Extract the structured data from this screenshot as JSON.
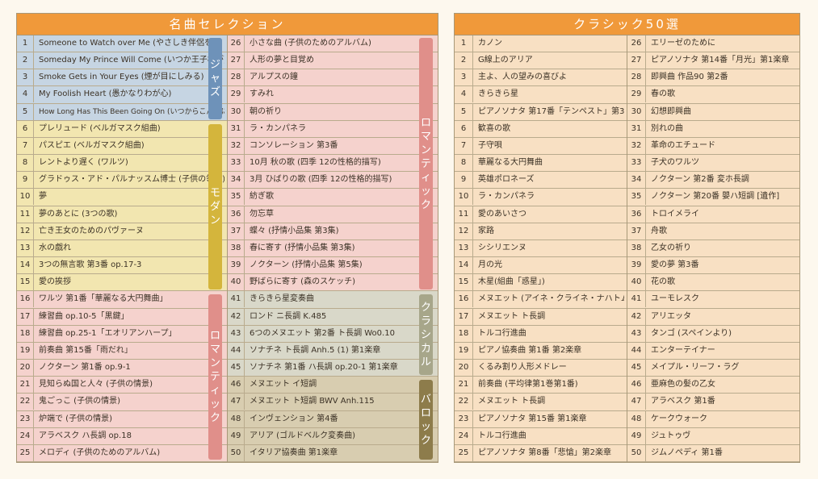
{
  "left_panel": {
    "title": "名曲セレクション",
    "col1": [
      {
        "num": "1",
        "title": "Someone to Watch over Me (やさしき伴侶を)",
        "group": "jazz"
      },
      {
        "num": "2",
        "title": "Someday My Prince Will Come (いつか王子様が)",
        "group": "jazz"
      },
      {
        "num": "3",
        "title": "Smoke Gets in Your Eyes (煙が目にしみる)",
        "group": "jazz"
      },
      {
        "num": "4",
        "title": "My Foolish Heart (愚かなりわが心)",
        "group": "jazz"
      },
      {
        "num": "5",
        "title": "How Long Has This Been Going On (いつからこんなに)",
        "group": "jazz"
      },
      {
        "num": "6",
        "title": "プレリュード (ベルガマスク組曲)",
        "group": "modern"
      },
      {
        "num": "7",
        "title": "パスピエ (ベルガマスク組曲)",
        "group": "modern"
      },
      {
        "num": "8",
        "title": "レントより遅く (ワルツ)",
        "group": "modern"
      },
      {
        "num": "9",
        "title": "グラドゥス・アド・パルナッスム博士 (子供の領分)",
        "group": "modern"
      },
      {
        "num": "10",
        "title": "夢",
        "group": "modern"
      },
      {
        "num": "11",
        "title": "夢のあとに (3つの歌)",
        "group": "modern"
      },
      {
        "num": "12",
        "title": "亡き王女のためのパヴァーヌ",
        "group": "modern"
      },
      {
        "num": "13",
        "title": "水の戯れ",
        "group": "modern"
      },
      {
        "num": "14",
        "title": "3つの無言歌 第3番 op.17-3",
        "group": "modern"
      },
      {
        "num": "15",
        "title": "愛の挨拶",
        "group": "modern"
      },
      {
        "num": "16",
        "title": "ワルツ 第1番「華麗なる大円舞曲」",
        "group": "romantic"
      },
      {
        "num": "17",
        "title": "練習曲 op.10-5「黒鍵」",
        "group": "romantic"
      },
      {
        "num": "18",
        "title": "練習曲 op.25-1「エオリアンハープ」",
        "group": "romantic"
      },
      {
        "num": "19",
        "title": "前奏曲 第15番「雨だれ」",
        "group": "romantic"
      },
      {
        "num": "20",
        "title": "ノクターン 第1番 op.9-1",
        "group": "romantic"
      },
      {
        "num": "21",
        "title": "見知らぬ国と人々 (子供の情景)",
        "group": "romantic"
      },
      {
        "num": "22",
        "title": "鬼ごっこ (子供の情景)",
        "group": "romantic"
      },
      {
        "num": "23",
        "title": "炉端で (子供の情景)",
        "group": "romantic"
      },
      {
        "num": "24",
        "title": "アラベスク ハ長調 op.18",
        "group": "romantic"
      },
      {
        "num": "25",
        "title": "メロディ (子供のためのアルバム)",
        "group": "romantic"
      }
    ],
    "col2": [
      {
        "num": "26",
        "title": "小さな曲 (子供のためのアルバム)",
        "group": "romantic"
      },
      {
        "num": "27",
        "title": "人形の夢と目覚め",
        "group": "romantic"
      },
      {
        "num": "28",
        "title": "アルプスの鐘",
        "group": "romantic"
      },
      {
        "num": "29",
        "title": "すみれ",
        "group": "romantic"
      },
      {
        "num": "30",
        "title": "朝の祈り",
        "group": "romantic"
      },
      {
        "num": "31",
        "title": "ラ・カンパネラ",
        "group": "romantic"
      },
      {
        "num": "32",
        "title": "コンソレーション 第3番",
        "group": "romantic"
      },
      {
        "num": "33",
        "title": "10月 秋の歌 (四季 12の性格的描写)",
        "group": "romantic"
      },
      {
        "num": "34",
        "title": "3月 ひばりの歌 (四季 12の性格的描写)",
        "group": "romantic"
      },
      {
        "num": "35",
        "title": "紡ぎ歌",
        "group": "romantic"
      },
      {
        "num": "36",
        "title": "勿忘草",
        "group": "romantic"
      },
      {
        "num": "37",
        "title": "蝶々 (抒情小品集 第3集)",
        "group": "romantic"
      },
      {
        "num": "38",
        "title": "春に寄す (抒情小品集 第3集)",
        "group": "romantic"
      },
      {
        "num": "39",
        "title": "ノクターン (抒情小品集 第5集)",
        "group": "romantic"
      },
      {
        "num": "40",
        "title": "野ばらに寄す (森のスケッチ)",
        "group": "romantic"
      },
      {
        "num": "41",
        "title": "きらきら星変奏曲",
        "group": "classical"
      },
      {
        "num": "42",
        "title": "ロンド ニ長調 K.485",
        "group": "classical"
      },
      {
        "num": "43",
        "title": "6つのメヌエット 第2番 ト長調 Wo0.10",
        "group": "classical"
      },
      {
        "num": "44",
        "title": "ソナチネ ト長調 Anh.5 (1) 第1楽章",
        "group": "classical"
      },
      {
        "num": "45",
        "title": "ソナチネ 第1番 ハ長調 op.20-1 第1楽章",
        "group": "classical"
      },
      {
        "num": "46",
        "title": "メヌエット イ短調",
        "group": "baroque"
      },
      {
        "num": "47",
        "title": "メヌエット ト短調 BWV Anh.115",
        "group": "baroque"
      },
      {
        "num": "48",
        "title": "インヴェンション 第4番",
        "group": "baroque"
      },
      {
        "num": "49",
        "title": "アリア (ゴルドベルク変奏曲)",
        "group": "baroque"
      },
      {
        "num": "50",
        "title": "イタリア協奏曲 第1楽章",
        "group": "baroque"
      }
    ],
    "group_labels": {
      "jazz": "ジャズ",
      "modern": "モダン",
      "romantic_left": "ロマンティック",
      "romantic_right": "ロマンティック",
      "classical": "クラシカル",
      "baroque": "バロック"
    },
    "colors": {
      "jazz_row": "#c6d5e3",
      "jazz_bar": "#6e92b9",
      "modern_row": "#f2e6b0",
      "modern_bar": "#d4b53c",
      "romantic_row": "#f5d2cd",
      "romantic_bar": "#e08f8a",
      "classical_row": "#d9d8c9",
      "classical_bar": "#a7a68a",
      "baroque_row": "#d8cdb0",
      "baroque_bar": "#8d7c4b"
    }
  },
  "right_panel": {
    "title": "クラシック50選",
    "row_color": "#f8e0c3",
    "col1": [
      {
        "num": "1",
        "title": "カノン"
      },
      {
        "num": "2",
        "title": "G線上のアリア"
      },
      {
        "num": "3",
        "title": "主よ、人の望みの喜びよ"
      },
      {
        "num": "4",
        "title": "きらきら星"
      },
      {
        "num": "5",
        "title": "ピアノソナタ 第17番「テンペスト」第3楽章"
      },
      {
        "num": "6",
        "title": "歓喜の歌"
      },
      {
        "num": "7",
        "title": "子守唄"
      },
      {
        "num": "8",
        "title": "華麗なる大円舞曲"
      },
      {
        "num": "9",
        "title": "英雄ポロネーズ"
      },
      {
        "num": "10",
        "title": "ラ・カンパネラ"
      },
      {
        "num": "11",
        "title": "愛のあいさつ"
      },
      {
        "num": "12",
        "title": "家路"
      },
      {
        "num": "13",
        "title": "シシリエンヌ"
      },
      {
        "num": "14",
        "title": "月の光"
      },
      {
        "num": "15",
        "title": "木星(組曲「惑星」)"
      },
      {
        "num": "16",
        "title": "メヌエット (アイネ・クライネ・ナハトムジーク)"
      },
      {
        "num": "17",
        "title": "メヌエット ト長調"
      },
      {
        "num": "18",
        "title": "トルコ行進曲"
      },
      {
        "num": "19",
        "title": "ピアノ協奏曲 第1番 第2楽章"
      },
      {
        "num": "20",
        "title": "くるみ割り人形メドレー"
      },
      {
        "num": "21",
        "title": "前奏曲 (平均律第1巻第1番)"
      },
      {
        "num": "22",
        "title": "メヌエット ト長調"
      },
      {
        "num": "23",
        "title": "ピアノソナタ 第15番 第1楽章"
      },
      {
        "num": "24",
        "title": "トルコ行進曲"
      },
      {
        "num": "25",
        "title": "ピアノソナタ 第8番「悲愴」第2楽章"
      }
    ],
    "col2": [
      {
        "num": "26",
        "title": "エリーゼのために"
      },
      {
        "num": "27",
        "title": "ピアノソナタ 第14番「月光」第1楽章"
      },
      {
        "num": "28",
        "title": "即興曲 作品90 第2番"
      },
      {
        "num": "29",
        "title": "春の歌"
      },
      {
        "num": "30",
        "title": "幻想即興曲"
      },
      {
        "num": "31",
        "title": "別れの曲"
      },
      {
        "num": "32",
        "title": "革命のエチュード"
      },
      {
        "num": "33",
        "title": "子犬のワルツ"
      },
      {
        "num": "34",
        "title": "ノクターン 第2番 変ホ長調"
      },
      {
        "num": "35",
        "title": "ノクターン 第20番 嬰ハ短調 [遺作]"
      },
      {
        "num": "36",
        "title": "トロイメライ"
      },
      {
        "num": "37",
        "title": "舟歌"
      },
      {
        "num": "38",
        "title": "乙女の祈り"
      },
      {
        "num": "39",
        "title": "愛の夢 第3番"
      },
      {
        "num": "40",
        "title": "花の歌"
      },
      {
        "num": "41",
        "title": "ユーモレスク"
      },
      {
        "num": "42",
        "title": "アリエッタ"
      },
      {
        "num": "43",
        "title": "タンゴ (スペインより)"
      },
      {
        "num": "44",
        "title": "エンターテイナー"
      },
      {
        "num": "45",
        "title": "メイプル・リーフ・ラグ"
      },
      {
        "num": "46",
        "title": "亜麻色の髪の乙女"
      },
      {
        "num": "47",
        "title": "アラベスク 第1番"
      },
      {
        "num": "48",
        "title": "ケークウォーク"
      },
      {
        "num": "49",
        "title": "ジュトゥヴ"
      },
      {
        "num": "50",
        "title": "ジムノペディ 第1番"
      }
    ]
  }
}
